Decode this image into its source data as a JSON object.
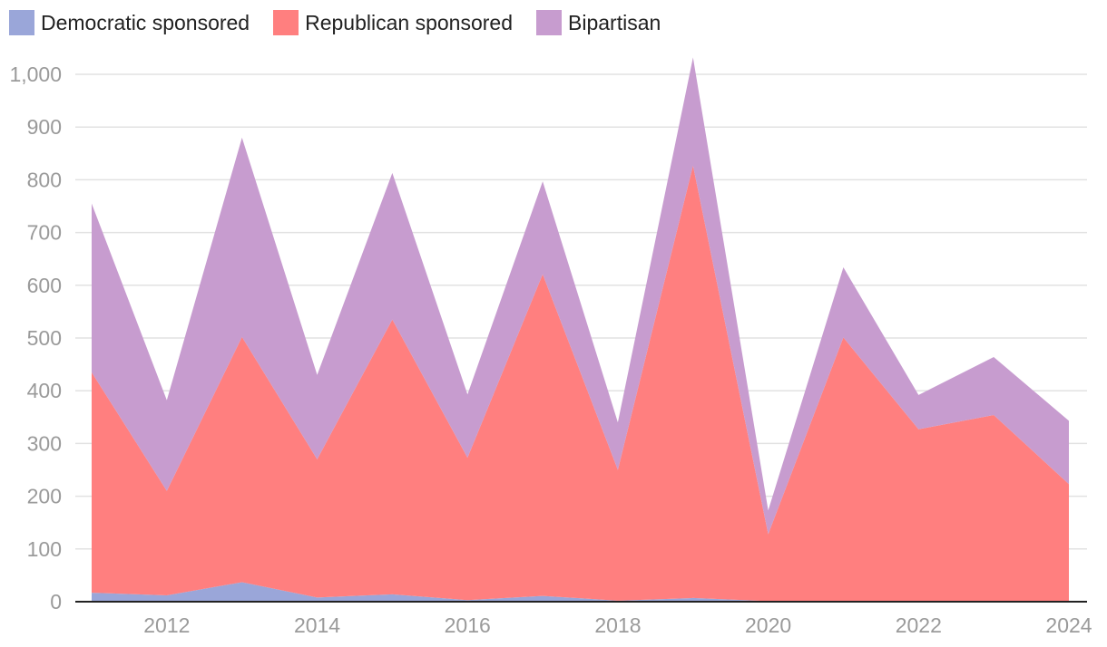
{
  "chart_data": {
    "type": "area",
    "stacked": true,
    "title": "",
    "xlabel": "",
    "ylabel": "",
    "x": [
      2011,
      2012,
      2013,
      2014,
      2015,
      2016,
      2017,
      2018,
      2019,
      2020,
      2021,
      2022,
      2023,
      2024
    ],
    "x_ticks": [
      "2012",
      "2014",
      "2016",
      "2018",
      "2020",
      "2022",
      "2024"
    ],
    "y_ticks": [
      "0",
      "100",
      "200",
      "300",
      "400",
      "500",
      "600",
      "700",
      "800",
      "900",
      "1,000"
    ],
    "ylim": [
      0,
      1000
    ],
    "grid": true,
    "legend_position": "top-left",
    "series": [
      {
        "name": "Democratic sponsored",
        "color": "#9aa6d9",
        "values": [
          17,
          12,
          37,
          8,
          14,
          3,
          11,
          2,
          7,
          1,
          1,
          1,
          1,
          1
        ]
      },
      {
        "name": "Republican sponsored",
        "color": "#ff7f7f",
        "values": [
          418,
          198,
          465,
          262,
          521,
          270,
          610,
          248,
          820,
          127,
          500,
          326,
          353,
          222
        ]
      },
      {
        "name": "Bipartisan",
        "color": "#c79ccf",
        "values": [
          320,
          172,
          378,
          160,
          278,
          120,
          176,
          90,
          205,
          45,
          133,
          65,
          110,
          120
        ]
      }
    ]
  }
}
